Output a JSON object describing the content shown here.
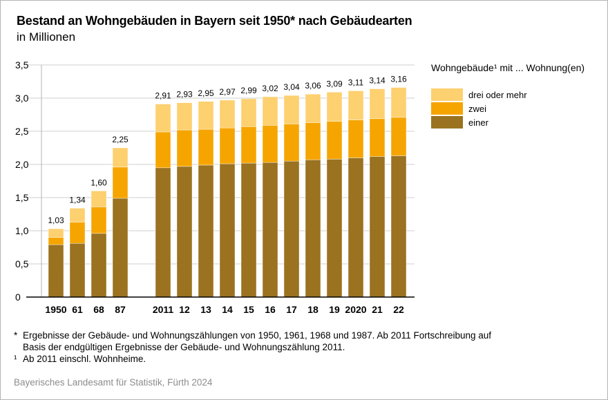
{
  "title": "Bestand an Wohngebäuden in Bayern seit 1950* nach Gebäudearten",
  "subtitle": "in Millionen",
  "legend": {
    "title": "Wohngebäude¹ mit ... Wohnung(en)",
    "items": [
      {
        "label": "drei oder mehr",
        "color": "#FDD070"
      },
      {
        "label": "zwei",
        "color": "#F6A500"
      },
      {
        "label": "einer",
        "color": "#9A7220"
      }
    ]
  },
  "footnotes": [
    {
      "mark": "*",
      "text": "Ergebnisse der Gebäude- und Wohnungszählungen von 1950, 1961, 1968 und 1987. Ab 2011 Fortschreibung auf",
      "text2": "Basis der endgültigen Ergebnisse der Gebäude- und Wohnungszählung 2011."
    },
    {
      "mark": "¹",
      "text": "Ab 2011 einschl. Wohnheime."
    }
  ],
  "source": "Bayerisches Landesamt für Statistik, Fürth 2024",
  "chart_data": {
    "type": "bar",
    "stacked": true,
    "title": "Bestand an Wohngebäuden in Bayern seit 1950* nach Gebäudearten",
    "subtitle": "in Millionen",
    "xlabel": "",
    "ylabel": "",
    "ylim": [
      0,
      3.5
    ],
    "yticks": [
      0,
      0.5,
      1.0,
      1.5,
      2.0,
      2.5,
      3.0,
      3.5
    ],
    "ytick_labels": [
      "0",
      "0,5",
      "1,0",
      "1,5",
      "2,0",
      "2,5",
      "3,0",
      "3,5"
    ],
    "grid": true,
    "legend_position": "right",
    "categories": [
      "1950",
      "61",
      "68",
      "87",
      "2011",
      "12",
      "13",
      "14",
      "15",
      "16",
      "17",
      "18",
      "19",
      "2020",
      "21",
      "22"
    ],
    "gap_after_index": 3,
    "series": [
      {
        "name": "einer",
        "color": "#9A7220",
        "values": [
          0.79,
          0.81,
          0.96,
          1.49,
          1.95,
          1.97,
          1.99,
          2.01,
          2.02,
          2.03,
          2.05,
          2.07,
          2.08,
          2.1,
          2.12,
          2.13
        ]
      },
      {
        "name": "zwei",
        "color": "#F6A500",
        "values": [
          0.11,
          0.32,
          0.4,
          0.47,
          0.54,
          0.55,
          0.54,
          0.54,
          0.55,
          0.56,
          0.56,
          0.56,
          0.57,
          0.57,
          0.57,
          0.58
        ]
      },
      {
        "name": "drei oder mehr",
        "color": "#FDD070",
        "values": [
          0.13,
          0.21,
          0.24,
          0.29,
          0.42,
          0.41,
          0.42,
          0.42,
          0.42,
          0.43,
          0.43,
          0.43,
          0.44,
          0.44,
          0.45,
          0.45
        ]
      }
    ],
    "totals": [
      1.03,
      1.34,
      1.6,
      2.25,
      2.91,
      2.93,
      2.95,
      2.97,
      2.99,
      3.02,
      3.04,
      3.06,
      3.09,
      3.11,
      3.14,
      3.16
    ],
    "total_labels": [
      "1,03",
      "1,34",
      "1,60",
      "2,25",
      "2,91",
      "2,93",
      "2,95",
      "2,97",
      "2,99",
      "3,02",
      "3,04",
      "3,06",
      "3,09",
      "3,11",
      "3,14",
      "3,16"
    ]
  }
}
